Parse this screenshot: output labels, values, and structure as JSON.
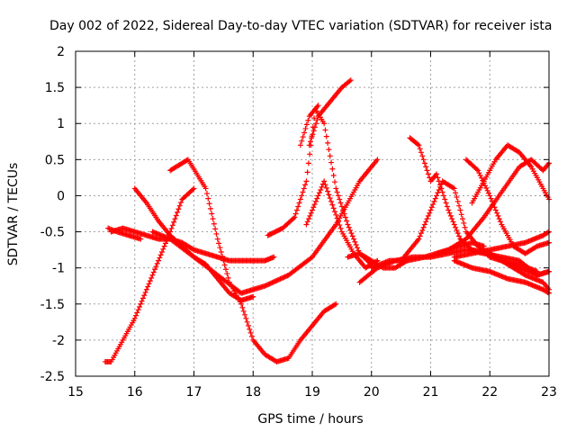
{
  "chart_data": {
    "type": "scatter",
    "title": "Day 002 of 2022, Sidereal Day-to-day VTEC variation (SDTVAR) for receiver ista",
    "xlabel": "GPS time / hours",
    "ylabel": "SDTVAR / TECUs",
    "xlim": [
      15,
      23
    ],
    "ylim": [
      -2.5,
      2
    ],
    "xticks": [
      "15",
      "16",
      "17",
      "18",
      "19",
      "20",
      "21",
      "22",
      "23"
    ],
    "yticks": [
      "-2.5",
      "-2",
      "-1.5",
      "-1",
      "-0.5",
      "0",
      "0.5",
      "1",
      "1.5",
      "2"
    ],
    "grid": true,
    "marker": "+",
    "color": "#ff0000",
    "series": [
      {
        "name": "s1",
        "x": [
          15.5,
          15.6,
          15.8,
          16.0,
          16.2,
          16.4,
          16.6,
          16.8,
          17.0
        ],
        "y": [
          -2.3,
          -2.3,
          -2.0,
          -1.7,
          -1.3,
          -0.9,
          -0.5,
          -0.05,
          0.1
        ]
      },
      {
        "name": "s2",
        "x": [
          15.6,
          15.8,
          16.0,
          16.2,
          16.4,
          16.6,
          16.8,
          17.0,
          17.2,
          17.4,
          17.6,
          17.8,
          18.0,
          18.2,
          18.35
        ],
        "y": [
          -0.5,
          -0.45,
          -0.5,
          -0.55,
          -0.6,
          -0.6,
          -0.65,
          -0.75,
          -0.8,
          -0.85,
          -0.9,
          -0.9,
          -0.9,
          -0.9,
          -0.85
        ]
      },
      {
        "name": "s3",
        "x": [
          15.55,
          15.7,
          15.9,
          16.1
        ],
        "y": [
          -0.45,
          -0.5,
          -0.55,
          -0.6
        ]
      },
      {
        "name": "s4",
        "x": [
          16.0,
          16.2,
          16.4,
          16.6,
          16.8,
          17.0,
          17.2,
          17.4,
          17.6,
          17.8,
          18.0
        ],
        "y": [
          0.1,
          -0.1,
          -0.35,
          -0.55,
          -0.7,
          -0.85,
          -0.95,
          -1.15,
          -1.35,
          -1.45,
          -1.4
        ]
      },
      {
        "name": "s5",
        "x": [
          16.6,
          16.9,
          17.2,
          17.4,
          17.6,
          17.8,
          18.0,
          18.2,
          18.4,
          18.6,
          18.8,
          19.0,
          19.2,
          19.4
        ],
        "y": [
          0.35,
          0.5,
          0.1,
          -0.6,
          -1.2,
          -1.5,
          -2.0,
          -2.2,
          -2.3,
          -2.25,
          -2.0,
          -1.8,
          -1.6,
          -1.5
        ]
      },
      {
        "name": "s6",
        "x": [
          16.3,
          16.6,
          17.0,
          17.4,
          17.8,
          18.2,
          18.6,
          19.0,
          19.4,
          19.8,
          20.1
        ],
        "y": [
          -0.5,
          -0.6,
          -0.85,
          -1.1,
          -1.35,
          -1.25,
          -1.1,
          -0.85,
          -0.4,
          0.2,
          0.5
        ]
      },
      {
        "name": "s7",
        "x": [
          18.25,
          18.5,
          18.7,
          18.9,
          19.05,
          19.2,
          19.4,
          19.6,
          19.8,
          20.0
        ],
        "y": [
          -0.55,
          -0.45,
          -0.3,
          0.2,
          1.2,
          1.0,
          0.1,
          -0.4,
          -0.8,
          -0.95
        ]
      },
      {
        "name": "s8",
        "x": [
          18.95,
          19.1,
          19.3,
          19.5,
          19.65
        ],
        "y": [
          0.7,
          1.1,
          1.3,
          1.5,
          1.6
        ]
      },
      {
        "name": "s9",
        "x": [
          18.8,
          18.95,
          19.1
        ],
        "y": [
          0.7,
          1.1,
          1.25
        ]
      },
      {
        "name": "s10",
        "x": [
          18.9,
          19.2,
          19.5,
          19.7,
          19.9,
          20.1
        ],
        "y": [
          -0.4,
          0.2,
          -0.5,
          -0.8,
          -1.0,
          -0.9
        ]
      },
      {
        "name": "s11",
        "x": [
          19.6,
          19.8,
          20.0,
          20.2,
          20.4,
          20.6
        ],
        "y": [
          -0.85,
          -0.8,
          -0.9,
          -1.0,
          -1.0,
          -0.9
        ]
      },
      {
        "name": "s12",
        "x": [
          19.8,
          20.1,
          20.4,
          20.7,
          21.0,
          21.3,
          21.6,
          21.9,
          22.2,
          22.5,
          22.8,
          23.0
        ],
        "y": [
          -1.2,
          -1.0,
          -0.9,
          -0.85,
          -0.85,
          -0.8,
          -0.75,
          -0.8,
          -0.85,
          -0.9,
          -1.1,
          -1.05
        ]
      },
      {
        "name": "s13",
        "x": [
          20.0,
          20.3,
          20.6,
          20.9,
          21.1,
          21.3,
          21.5,
          21.7,
          21.9
        ],
        "y": [
          -1.0,
          -0.9,
          -0.9,
          -0.85,
          -0.8,
          -0.75,
          -0.7,
          -0.65,
          -0.7
        ]
      },
      {
        "name": "s14",
        "x": [
          20.65,
          20.8,
          21.0,
          21.1,
          21.3,
          21.5,
          21.7,
          22.0,
          22.3,
          22.6,
          22.9,
          23.0
        ],
        "y": [
          0.8,
          0.7,
          0.2,
          0.3,
          -0.2,
          -0.6,
          -0.75,
          -0.8,
          -0.95,
          -1.1,
          -1.2,
          -1.3
        ]
      },
      {
        "name": "s15",
        "x": [
          20.55,
          20.8,
          21.0,
          21.2,
          21.4,
          21.6,
          21.8,
          22.0,
          22.2,
          22.5,
          22.8,
          23.0
        ],
        "y": [
          -0.85,
          -0.6,
          -0.2,
          0.2,
          0.1,
          -0.5,
          -0.7,
          -0.85,
          -0.9,
          -1.0,
          -1.1,
          -1.05
        ]
      },
      {
        "name": "s16",
        "x": [
          21.4,
          21.7,
          22.0,
          22.3,
          22.6,
          22.9,
          23.0
        ],
        "y": [
          -0.85,
          -0.8,
          -0.75,
          -0.7,
          -0.65,
          -0.55,
          -0.5
        ]
      },
      {
        "name": "s17",
        "x": [
          21.6,
          21.8,
          22.0,
          22.2,
          22.4,
          22.6,
          22.8,
          23.0
        ],
        "y": [
          0.5,
          0.35,
          0.0,
          -0.4,
          -0.7,
          -0.8,
          -0.7,
          -0.65
        ]
      },
      {
        "name": "s18",
        "x": [
          21.7,
          21.9,
          22.1,
          22.3,
          22.5,
          22.7,
          22.9,
          23.0
        ],
        "y": [
          -0.1,
          0.2,
          0.5,
          0.7,
          0.6,
          0.4,
          0.1,
          -0.05
        ]
      },
      {
        "name": "s19",
        "x": [
          21.1,
          21.3,
          21.6,
          21.9,
          22.2,
          22.5,
          22.7,
          22.9,
          23.0
        ],
        "y": [
          -0.8,
          -0.75,
          -0.6,
          -0.3,
          0.05,
          0.4,
          0.5,
          0.35,
          0.45
        ]
      },
      {
        "name": "s20",
        "x": [
          21.4,
          21.7,
          22.0,
          22.3,
          22.6,
          22.9,
          23.0
        ],
        "y": [
          -0.9,
          -1.0,
          -1.05,
          -1.15,
          -1.2,
          -1.3,
          -1.35
        ]
      },
      {
        "name": "s21",
        "x": [
          21.9,
          22.2,
          22.5,
          22.8
        ],
        "y": [
          -0.75,
          -0.9,
          -0.95,
          -1.05
        ]
      }
    ]
  }
}
